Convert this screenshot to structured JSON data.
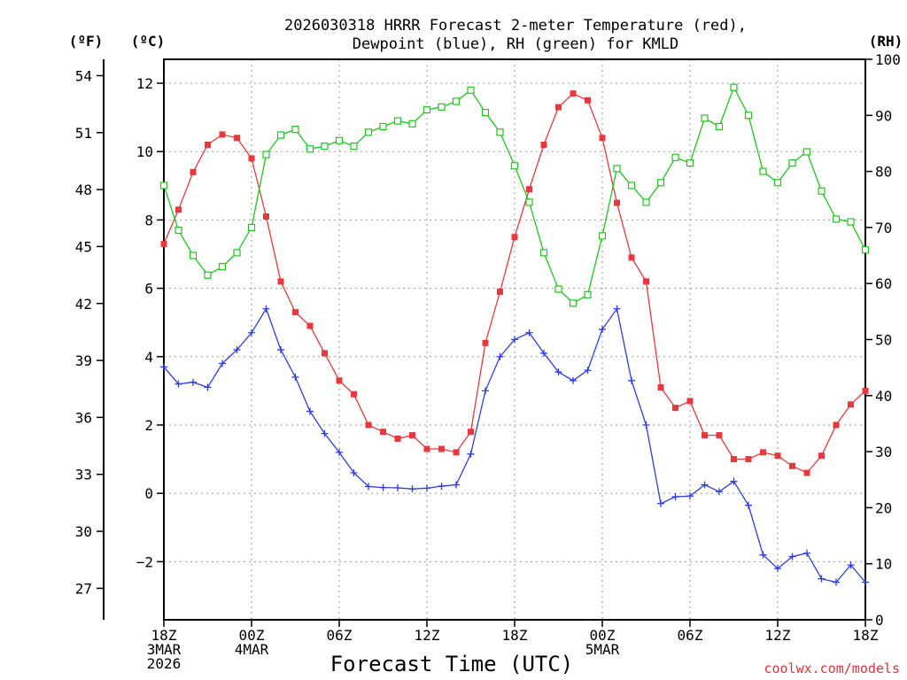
{
  "chart_data": {
    "type": "line",
    "title_line1": "2026030318 HRRR Forecast 2-meter Temperature (red),",
    "title_line2": "Dewpoint (blue), RH (green) for KMLD",
    "xlabel": "Forecast Time (UTC)",
    "credit": "coolwx.com/models",
    "unit_f": "(ºF)",
    "unit_c": "(ºC)",
    "unit_rh": "(RH)",
    "x_range_hours": [
      0,
      48
    ],
    "ylim_c": [
      -3.7,
      12.7
    ],
    "ylim_rh": [
      0,
      100
    ],
    "f_ticks": [
      54,
      51,
      48,
      45,
      42,
      39,
      36,
      33,
      30,
      27
    ],
    "c_ticks": [
      {
        "v": 12,
        "label": "12"
      },
      {
        "v": 10,
        "label": "10"
      },
      {
        "v": 8,
        "label": "8"
      },
      {
        "v": 6,
        "label": "6"
      },
      {
        "v": 4,
        "label": "4"
      },
      {
        "v": 2,
        "label": "2"
      },
      {
        "v": 0,
        "label": "0"
      },
      {
        "v": -2,
        "label": "−2"
      }
    ],
    "rh_ticks": [
      100,
      90,
      80,
      70,
      60,
      50,
      40,
      30,
      20,
      10,
      0
    ],
    "x_ticks": [
      {
        "h": 0,
        "lines": [
          "18Z",
          "3MAR",
          "2026"
        ]
      },
      {
        "h": 6,
        "lines": [
          "00Z",
          "4MAR"
        ]
      },
      {
        "h": 12,
        "lines": [
          "06Z"
        ]
      },
      {
        "h": 18,
        "lines": [
          "12Z"
        ]
      },
      {
        "h": 24,
        "lines": [
          "18Z"
        ]
      },
      {
        "h": 30,
        "lines": [
          "00Z",
          "5MAR"
        ]
      },
      {
        "h": 36,
        "lines": [
          "06Z"
        ]
      },
      {
        "h": 42,
        "lines": [
          "12Z"
        ]
      },
      {
        "h": 48,
        "lines": [
          "18Z"
        ]
      }
    ],
    "series": [
      {
        "name": "Temperature",
        "color": "#e8383d",
        "marker": "filled-square",
        "axis": "c",
        "values": [
          7.3,
          8.3,
          9.4,
          10.2,
          10.5,
          10.4,
          9.8,
          8.1,
          6.2,
          5.3,
          4.9,
          4.1,
          3.3,
          2.9,
          2.0,
          1.8,
          1.6,
          1.7,
          1.3,
          1.3,
          1.2,
          1.8,
          4.4,
          5.9,
          7.5,
          8.9,
          10.2,
          11.3,
          11.7,
          11.5,
          10.4,
          8.5,
          6.9,
          6.2,
          3.1,
          2.5,
          2.7,
          1.7,
          1.7,
          1.0,
          1.0,
          1.2,
          1.1,
          0.8,
          0.6,
          1.1,
          2.0,
          2.6,
          3.0
        ]
      },
      {
        "name": "Dewpoint",
        "color": "#2e3ce6",
        "marker": "plus",
        "axis": "c",
        "values": [
          3.7,
          3.2,
          3.25,
          3.1,
          3.8,
          4.2,
          4.7,
          5.4,
          4.2,
          3.4,
          2.4,
          1.75,
          1.2,
          0.6,
          0.2,
          0.17,
          0.16,
          0.13,
          0.15,
          0.21,
          0.25,
          1.15,
          3.0,
          4.0,
          4.5,
          4.7,
          4.1,
          3.55,
          3.3,
          3.6,
          4.8,
          5.4,
          3.3,
          2.0,
          -0.3,
          -0.1,
          -0.08,
          0.25,
          0.05,
          0.35,
          -0.35,
          -1.8,
          -2.2,
          -1.85,
          -1.75,
          -2.5,
          -2.6,
          -2.1,
          -2.6
        ]
      },
      {
        "name": "RH",
        "color": "#22c322",
        "marker": "open-square",
        "axis": "rh",
        "values": [
          77.5,
          69.5,
          65.0,
          61.5,
          63.0,
          65.5,
          70.0,
          83.0,
          86.5,
          87.5,
          84.0,
          84.5,
          85.5,
          84.5,
          87.0,
          88.0,
          89.0,
          88.5,
          91.0,
          91.5,
          92.5,
          94.5,
          90.5,
          87.0,
          81.0,
          74.5,
          65.5,
          59.0,
          56.5,
          58.0,
          68.5,
          80.5,
          77.5,
          74.5,
          78.0,
          82.5,
          81.5,
          89.5,
          88.0,
          95.0,
          90.0,
          80.0,
          78.0,
          81.5,
          83.5,
          76.5,
          71.5,
          71.0,
          66.0
        ]
      }
    ]
  }
}
